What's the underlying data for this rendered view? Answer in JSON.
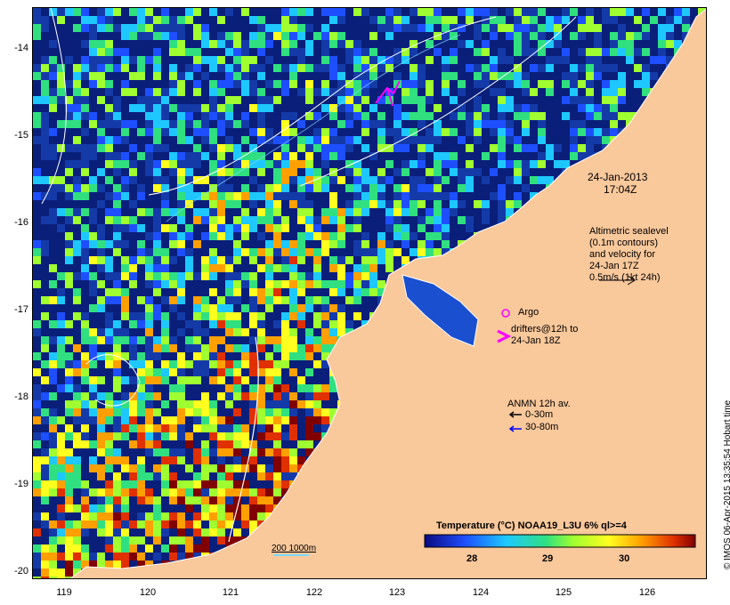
{
  "axes": {
    "x_ticks": [
      "119",
      "120",
      "121",
      "122",
      "123",
      "124",
      "125",
      "126"
    ],
    "y_ticks": [
      "-14",
      "-15",
      "-16",
      "-17",
      "-18",
      "-19",
      "-20"
    ]
  },
  "annotations": {
    "datetime_line1": "24-Jan-2013",
    "datetime_line2": "17:04Z",
    "altimetric": [
      "Altimetric sealevel",
      "(0.1m contours)",
      "and velocity for",
      "24-Jan 17Z",
      "0.5m/s (1kt 24h)"
    ],
    "argo": "Argo",
    "drifters": [
      "drifters@12h to",
      "24-Jan 18Z"
    ],
    "anmn_title": "ANMN 12h av.",
    "anmn_shallow": "0-30m",
    "anmn_deep": "30-80m",
    "bathy_scale": "200  1000m"
  },
  "colorbar": {
    "title": "Temperature (°C) NOAA19_L3U 6% ql>=4",
    "ticks": [
      "28",
      "29",
      "30"
    ]
  },
  "credit": "© IMOS 06-Apr-2015 13:35:54 Hobart time",
  "colors": {
    "land": "#f9c89b",
    "ocean_cold": "#0a1f7a",
    "drifter": "#ff00ff",
    "anmn_shallow": "#000000",
    "anmn_deep": "#0000ff"
  }
}
